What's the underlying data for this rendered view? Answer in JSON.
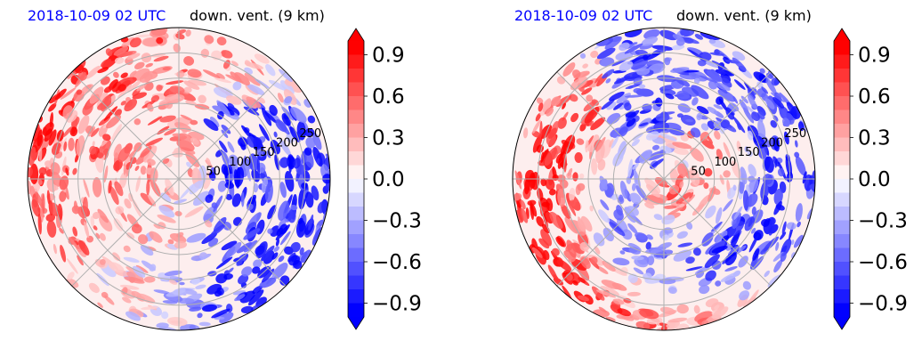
{
  "chart_data": [
    {
      "type": "heatmap",
      "projection": "polar",
      "title_date": "2018-10-09 02 UTC",
      "title_variable": "down. vent. (9 km)",
      "radial_ticks": [
        50,
        100,
        150,
        200,
        250
      ],
      "radial_max": 300,
      "angular_gridlines_deg": [
        0,
        45,
        90,
        135,
        180,
        225,
        270,
        315
      ],
      "grid": true,
      "colormap": "bwr",
      "colorbar": {
        "min": -1.0,
        "max": 1.0,
        "extend": "both",
        "ticks": [
          0.9,
          0.6,
          0.3,
          0.0,
          -0.3,
          -0.6,
          -0.9
        ],
        "tick_labels": [
          "0.9",
          "0.6",
          "0.3",
          "0.0",
          "−0.3",
          "−0.6",
          "−0.9"
        ],
        "placement": "right"
      },
      "pattern": {
        "positive_region": "west and north",
        "negative_region": "east",
        "seed": 7
      }
    },
    {
      "type": "heatmap",
      "projection": "polar",
      "title_date": "2018-10-09 02 UTC",
      "title_variable": "down. vent. (9 km)",
      "radial_ticks": [
        50,
        100,
        150,
        200,
        250
      ],
      "radial_max": 300,
      "angular_gridlines_deg": [
        0,
        45,
        90,
        135,
        180,
        225,
        270,
        315
      ],
      "grid": true,
      "colormap": "bwr",
      "colorbar": {
        "min": -1.0,
        "max": 1.0,
        "extend": "both",
        "ticks": [
          0.9,
          0.6,
          0.3,
          0.0,
          -0.3,
          -0.6,
          -0.9
        ],
        "tick_labels": [
          "0.9",
          "0.6",
          "0.3",
          "0.0",
          "−0.3",
          "−0.6",
          "−0.9"
        ],
        "placement": "right"
      },
      "pattern": {
        "positive_region": "west and south spiral",
        "negative_region": "north and east",
        "seed": 19
      }
    }
  ]
}
